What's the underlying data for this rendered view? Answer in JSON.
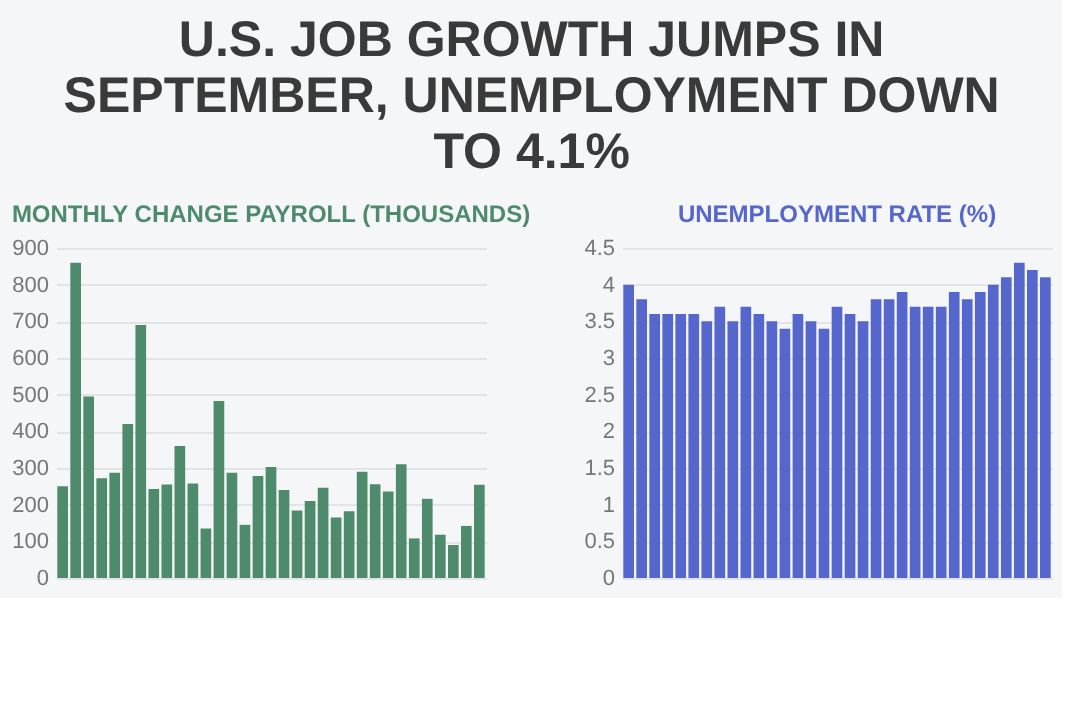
{
  "chart_data": [
    {
      "type": "bar",
      "title": "U.S. JOB GROWTH JUMPS IN SEPTEMBER, UNEMPLOYMENT DOWN TO 4.1%",
      "subtitle": "MONTHLY CHANGE PAYROLL (THOUSANDS)",
      "categories": [
        null,
        null,
        null,
        null,
        null,
        null,
        null,
        null,
        null,
        null,
        null,
        null,
        null,
        null,
        null,
        null,
        null,
        null,
        null,
        null,
        null,
        null,
        null,
        null,
        null,
        null,
        null,
        null,
        null,
        null,
        null,
        null,
        null
      ],
      "series": [
        {
          "color": "#4e8a6c",
          "values": [
            250,
            860,
            495,
            272,
            287,
            420,
            690,
            243,
            255,
            360,
            258,
            135,
            483,
            287,
            145,
            278,
            303,
            240,
            184,
            210,
            246,
            165,
            182,
            290,
            256,
            236,
            310,
            108,
            216,
            118,
            90,
            142,
            254
          ]
        }
      ],
      "ylim": [
        0,
        900
      ],
      "yticks": [
        0,
        100,
        200,
        300,
        400,
        500,
        600,
        700,
        800,
        900
      ],
      "grid": "y",
      "tick_labels": "y"
    },
    {
      "type": "bar",
      "subtitle": "UNEMPLOYMENT RATE (%)",
      "categories": [
        null,
        null,
        null,
        null,
        null,
        null,
        null,
        null,
        null,
        null,
        null,
        null,
        null,
        null,
        null,
        null,
        null,
        null,
        null,
        null,
        null,
        null,
        null,
        null,
        null,
        null,
        null,
        null,
        null,
        null,
        null,
        null,
        null
      ],
      "series": [
        {
          "color": "#5566cc",
          "values": [
            4.0,
            3.8,
            3.6,
            3.6,
            3.6,
            3.6,
            3.5,
            3.7,
            3.5,
            3.7,
            3.6,
            3.5,
            3.4,
            3.6,
            3.5,
            3.4,
            3.7,
            3.6,
            3.5,
            3.8,
            3.8,
            3.9,
            3.7,
            3.7,
            3.7,
            3.9,
            3.8,
            3.9,
            4.0,
            4.1,
            4.3,
            4.2,
            4.1
          ]
        }
      ],
      "ylim": [
        0,
        4.5
      ],
      "yticks": [
        0,
        0.5,
        1,
        1.5,
        2,
        2.5,
        3,
        3.5,
        4,
        4.5
      ],
      "grid": "y",
      "tick_labels": "y"
    }
  ]
}
